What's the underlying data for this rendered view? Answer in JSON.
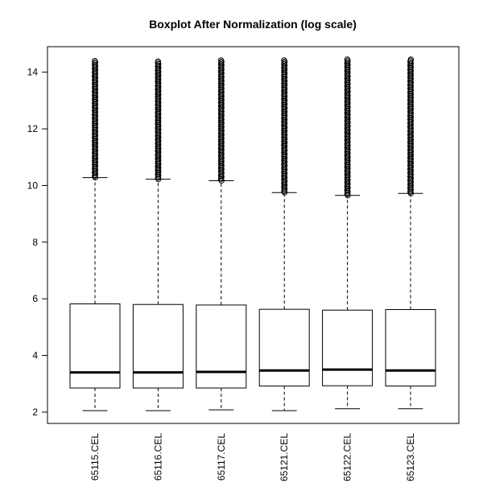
{
  "chart_data": {
    "type": "boxplot",
    "title": "Boxplot After Normalization (log scale)",
    "xlabel": "",
    "ylabel": "",
    "ylim": [
      1.6,
      14.9
    ],
    "yticks": [
      2,
      4,
      6,
      8,
      10,
      12,
      14
    ],
    "ytick_labels": [
      "2",
      "4",
      "6",
      "8",
      "10",
      "12",
      "14"
    ],
    "grid": false,
    "categories": [
      "65115.CEL",
      "65116.CEL",
      "65117.CEL",
      "65121.CEL",
      "65122.CEL",
      "65123.CEL"
    ],
    "boxes": [
      {
        "min": 2.05,
        "q1": 2.85,
        "median": 3.4,
        "q3": 5.82,
        "max": 10.28,
        "outliers_from": 10.28,
        "outliers_to": 14.4
      },
      {
        "min": 2.05,
        "q1": 2.85,
        "median": 3.4,
        "q3": 5.8,
        "max": 10.22,
        "outliers_from": 10.22,
        "outliers_to": 14.38
      },
      {
        "min": 2.08,
        "q1": 2.85,
        "median": 3.42,
        "q3": 5.78,
        "max": 10.17,
        "outliers_from": 10.17,
        "outliers_to": 14.42
      },
      {
        "min": 2.05,
        "q1": 2.92,
        "median": 3.47,
        "q3": 5.63,
        "max": 9.75,
        "outliers_from": 9.75,
        "outliers_to": 14.42
      },
      {
        "min": 2.12,
        "q1": 2.93,
        "median": 3.5,
        "q3": 5.6,
        "max": 9.65,
        "outliers_from": 9.65,
        "outliers_to": 14.45
      },
      {
        "min": 2.12,
        "q1": 2.92,
        "median": 3.47,
        "q3": 5.62,
        "max": 9.72,
        "outliers_from": 9.72,
        "outliers_to": 14.45
      }
    ]
  }
}
